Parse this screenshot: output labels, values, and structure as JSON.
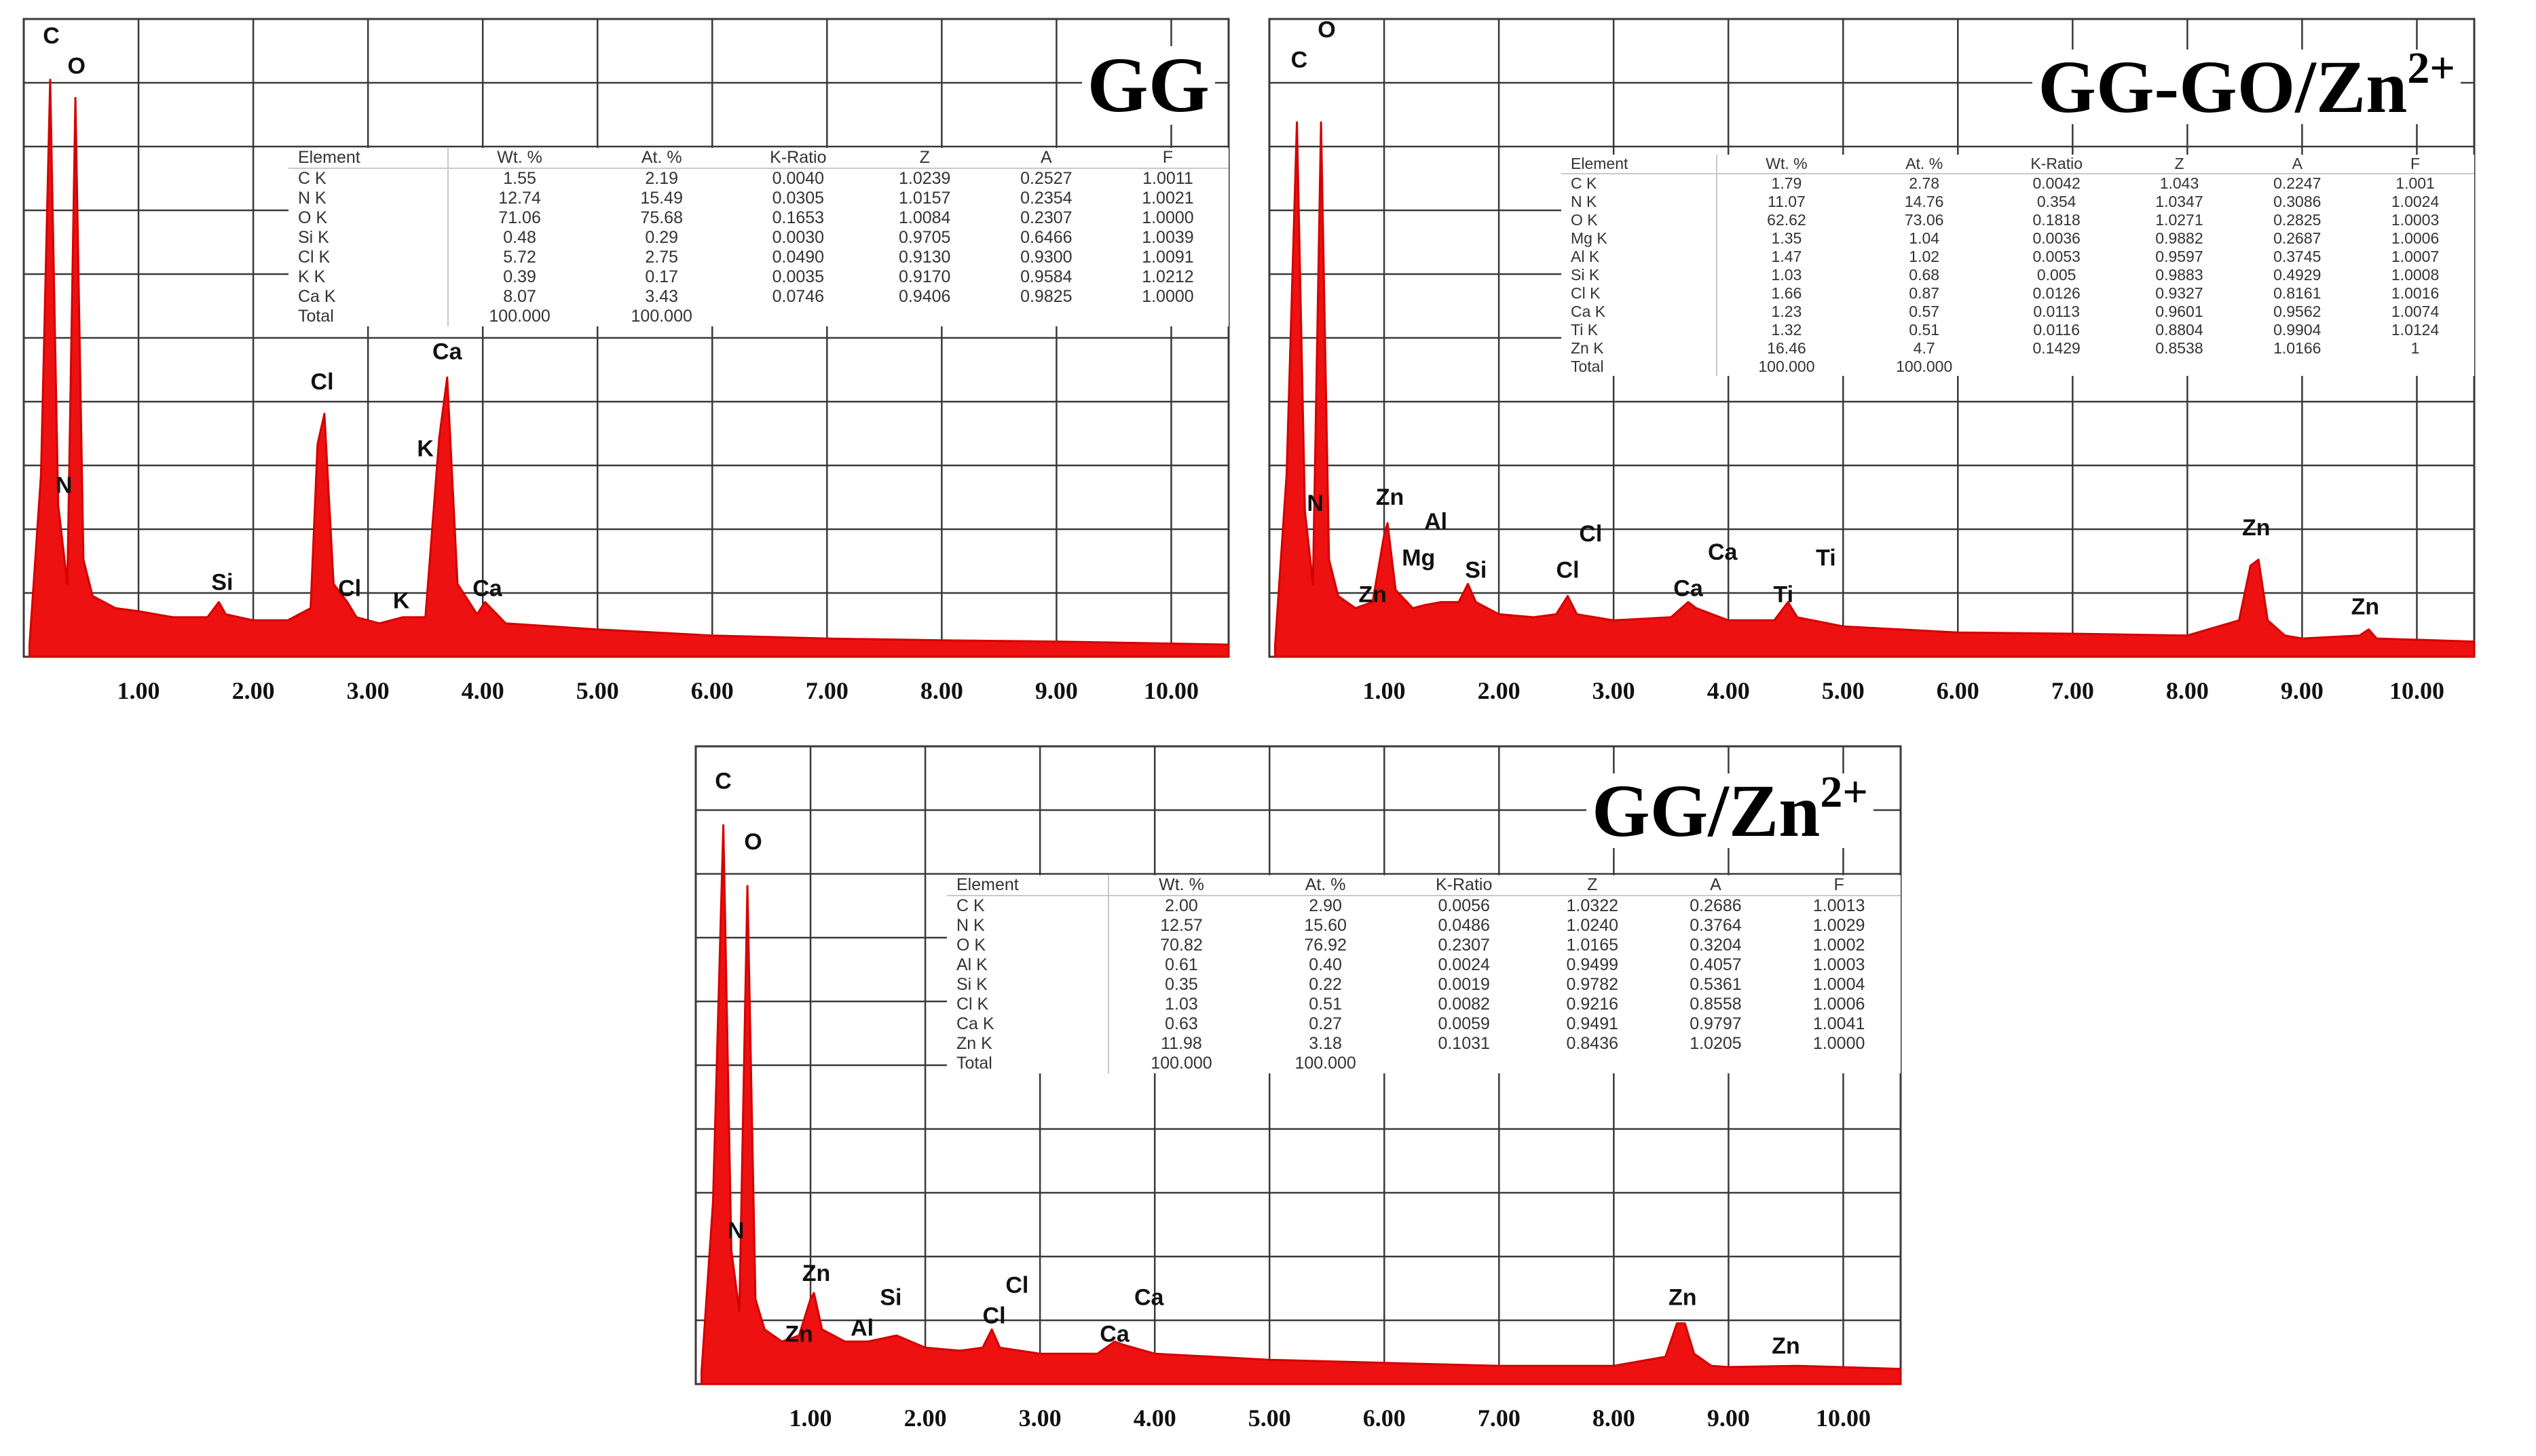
{
  "chart_data": [
    {
      "type": "line",
      "title": "GG",
      "x_ticks": [
        "1.00",
        "2.00",
        "3.00",
        "4.00",
        "5.00",
        "6.00",
        "7.00",
        "8.00",
        "9.00",
        "10.00"
      ],
      "xlim": [
        0,
        10.5
      ],
      "grid": true,
      "spectrum": [
        [
          0.05,
          2
        ],
        [
          0.15,
          30
        ],
        [
          0.23,
          95
        ],
        [
          0.3,
          25
        ],
        [
          0.38,
          12
        ],
        [
          0.45,
          92
        ],
        [
          0.52,
          16
        ],
        [
          0.6,
          10
        ],
        [
          0.8,
          8
        ],
        [
          1.0,
          7.5
        ],
        [
          1.3,
          6.5
        ],
        [
          1.6,
          6.5
        ],
        [
          1.7,
          9
        ],
        [
          1.76,
          7
        ],
        [
          2.0,
          6
        ],
        [
          2.3,
          6
        ],
        [
          2.5,
          8
        ],
        [
          2.56,
          35
        ],
        [
          2.62,
          40
        ],
        [
          2.7,
          12
        ],
        [
          2.82,
          9
        ],
        [
          2.9,
          6.5
        ],
        [
          3.1,
          5.5
        ],
        [
          3.3,
          6.5
        ],
        [
          3.5,
          6.5
        ],
        [
          3.62,
          36
        ],
        [
          3.69,
          46
        ],
        [
          3.78,
          12
        ],
        [
          3.95,
          7
        ],
        [
          4.02,
          9
        ],
        [
          4.2,
          5.5
        ],
        [
          5.0,
          4.5
        ],
        [
          6.0,
          3.5
        ],
        [
          7.0,
          3
        ],
        [
          8.0,
          2.7
        ],
        [
          9.0,
          2.5
        ],
        [
          10.5,
          2
        ]
      ],
      "peak_labels": [
        {
          "text": "C",
          "x": 0.24,
          "y": 101
        },
        {
          "text": "O",
          "x": 0.46,
          "y": 96
        },
        {
          "text": "N",
          "x": 0.35,
          "y": 27
        },
        {
          "text": "Si",
          "x": 1.73,
          "y": 11
        },
        {
          "text": "Cl",
          "x": 2.6,
          "y": 44
        },
        {
          "text": "Cl",
          "x": 2.84,
          "y": 10
        },
        {
          "text": "K",
          "x": 3.29,
          "y": 8
        },
        {
          "text": "Ca",
          "x": 3.69,
          "y": 49
        },
        {
          "text": "K",
          "x": 3.5,
          "y": 33
        },
        {
          "text": "Ca",
          "x": 4.04,
          "y": 10
        }
      ],
      "table": {
        "headers": [
          "Element",
          "Wt. %",
          "At. %",
          "K-Ratio",
          "Z",
          "A",
          "F"
        ],
        "rows": [
          [
            "C K",
            "1.55",
            "2.19",
            "0.0040",
            "1.0239",
            "0.2527",
            "1.0011"
          ],
          [
            "N K",
            "12.74",
            "15.49",
            "0.0305",
            "1.0157",
            "0.2354",
            "1.0021"
          ],
          [
            "O K",
            "71.06",
            "75.68",
            "0.1653",
            "1.0084",
            "0.2307",
            "1.0000"
          ],
          [
            "Si K",
            "0.48",
            "0.29",
            "0.0030",
            "0.9705",
            "0.6466",
            "1.0039"
          ],
          [
            "Cl K",
            "5.72",
            "2.75",
            "0.0490",
            "0.9130",
            "0.9300",
            "1.0091"
          ],
          [
            "K K",
            "0.39",
            "0.17",
            "0.0035",
            "0.9170",
            "0.9584",
            "1.0212"
          ],
          [
            "Ca K",
            "8.07",
            "3.43",
            "0.0746",
            "0.9406",
            "0.9825",
            "1.0000"
          ],
          [
            "Total",
            "100.000",
            "100.000",
            "",
            "",
            "",
            ""
          ]
        ]
      }
    },
    {
      "type": "line",
      "title": "GG-GO/Zn",
      "title_superscript": "2+",
      "x_ticks": [
        "1.00",
        "2.00",
        "3.00",
        "4.00",
        "5.00",
        "6.00",
        "7.00",
        "8.00",
        "9.00",
        "10.00"
      ],
      "xlim": [
        0,
        10.5
      ],
      "grid": true,
      "spectrum": [
        [
          0.05,
          2
        ],
        [
          0.15,
          30
        ],
        [
          0.24,
          88
        ],
        [
          0.31,
          24
        ],
        [
          0.38,
          12
        ],
        [
          0.45,
          88
        ],
        [
          0.52,
          16
        ],
        [
          0.6,
          10
        ],
        [
          0.75,
          8
        ],
        [
          0.9,
          9
        ],
        [
          1.0,
          20
        ],
        [
          1.03,
          22
        ],
        [
          1.1,
          11
        ],
        [
          1.25,
          8
        ],
        [
          1.35,
          8.5
        ],
        [
          1.5,
          9
        ],
        [
          1.65,
          9
        ],
        [
          1.73,
          12
        ],
        [
          1.8,
          9
        ],
        [
          2.0,
          7
        ],
        [
          2.3,
          6.5
        ],
        [
          2.5,
          7
        ],
        [
          2.6,
          10
        ],
        [
          2.68,
          7
        ],
        [
          3.0,
          6
        ],
        [
          3.5,
          6.5
        ],
        [
          3.65,
          9
        ],
        [
          3.72,
          8
        ],
        [
          4.0,
          6
        ],
        [
          4.4,
          6
        ],
        [
          4.52,
          9
        ],
        [
          4.6,
          6.5
        ],
        [
          5.0,
          5
        ],
        [
          6.0,
          4
        ],
        [
          7.0,
          3.8
        ],
        [
          8.0,
          3.5
        ],
        [
          8.45,
          6
        ],
        [
          8.55,
          15
        ],
        [
          8.62,
          16
        ],
        [
          8.7,
          6
        ],
        [
          8.85,
          3.5
        ],
        [
          9.0,
          3
        ],
        [
          9.5,
          3.5
        ],
        [
          9.58,
          4.5
        ],
        [
          9.65,
          3
        ],
        [
          10.5,
          2.5
        ]
      ],
      "peak_labels": [
        {
          "text": "O",
          "x": 0.5,
          "y": 102
        },
        {
          "text": "C",
          "x": 0.26,
          "y": 97
        },
        {
          "text": "N",
          "x": 0.4,
          "y": 24
        },
        {
          "text": "Zn",
          "x": 1.05,
          "y": 25
        },
        {
          "text": "Zn",
          "x": 0.9,
          "y": 9
        },
        {
          "text": "Al",
          "x": 1.45,
          "y": 21
        },
        {
          "text": "Mg",
          "x": 1.3,
          "y": 15
        },
        {
          "text": "Si",
          "x": 1.8,
          "y": 13
        },
        {
          "text": "Cl",
          "x": 2.8,
          "y": 19
        },
        {
          "text": "Cl",
          "x": 2.6,
          "y": 13
        },
        {
          "text": "Ca",
          "x": 3.95,
          "y": 16
        },
        {
          "text": "Ca",
          "x": 3.65,
          "y": 10
        },
        {
          "text": "Ti",
          "x": 4.85,
          "y": 15
        },
        {
          "text": "Ti",
          "x": 4.48,
          "y": 9
        },
        {
          "text": "Zn",
          "x": 8.6,
          "y": 20
        },
        {
          "text": "Zn",
          "x": 9.55,
          "y": 7
        }
      ],
      "table": {
        "headers": [
          "Element",
          "Wt. %",
          "At. %",
          "K-Ratio",
          "Z",
          "A",
          "F"
        ],
        "rows": [
          [
            "C K",
            "1.79",
            "2.78",
            "0.0042",
            "1.043",
            "0.2247",
            "1.001"
          ],
          [
            "N K",
            "11.07",
            "14.76",
            "0.354",
            "1.0347",
            "0.3086",
            "1.0024"
          ],
          [
            "O K",
            "62.62",
            "73.06",
            "0.1818",
            "1.0271",
            "0.2825",
            "1.0003"
          ],
          [
            "Mg K",
            "1.35",
            "1.04",
            "0.0036",
            "0.9882",
            "0.2687",
            "1.0006"
          ],
          [
            "Al K",
            "1.47",
            "1.02",
            "0.0053",
            "0.9597",
            "0.3745",
            "1.0007"
          ],
          [
            "Si K",
            "1.03",
            "0.68",
            "0.005",
            "0.9883",
            "0.4929",
            "1.0008"
          ],
          [
            "Cl K",
            "1.66",
            "0.87",
            "0.0126",
            "0.9327",
            "0.8161",
            "1.0016"
          ],
          [
            "Ca K",
            "1.23",
            "0.57",
            "0.0113",
            "0.9601",
            "0.9562",
            "1.0074"
          ],
          [
            "Ti K",
            "1.32",
            "0.51",
            "0.0116",
            "0.8804",
            "0.9904",
            "1.0124"
          ],
          [
            "Zn K",
            "16.46",
            "4.7",
            "0.1429",
            "0.8538",
            "1.0166",
            "1"
          ],
          [
            "Total",
            "100.000",
            "100.000",
            "",
            "",
            "",
            ""
          ]
        ]
      }
    },
    {
      "type": "line",
      "title": "GG/Zn",
      "title_superscript": "2+",
      "x_ticks": [
        "1.00",
        "2.00",
        "3.00",
        "4.00",
        "5.00",
        "6.00",
        "7.00",
        "8.00",
        "9.00",
        "10.00"
      ],
      "xlim": [
        0,
        10.5
      ],
      "grid": true,
      "spectrum": [
        [
          0.05,
          2
        ],
        [
          0.15,
          30
        ],
        [
          0.24,
          92
        ],
        [
          0.31,
          22
        ],
        [
          0.38,
          12
        ],
        [
          0.45,
          82
        ],
        [
          0.52,
          14
        ],
        [
          0.6,
          9
        ],
        [
          0.75,
          7
        ],
        [
          0.9,
          8
        ],
        [
          1.0,
          14
        ],
        [
          1.03,
          15
        ],
        [
          1.1,
          9
        ],
        [
          1.3,
          7
        ],
        [
          1.5,
          7
        ],
        [
          1.75,
          8
        ],
        [
          2.0,
          6
        ],
        [
          2.3,
          5.5
        ],
        [
          2.5,
          6
        ],
        [
          2.58,
          9
        ],
        [
          2.65,
          6
        ],
        [
          3.0,
          5
        ],
        [
          3.5,
          5
        ],
        [
          3.65,
          7
        ],
        [
          3.72,
          6.5
        ],
        [
          4.0,
          5
        ],
        [
          5.0,
          4
        ],
        [
          6.0,
          3.5
        ],
        [
          7.0,
          3
        ],
        [
          8.0,
          3
        ],
        [
          8.45,
          4.5
        ],
        [
          8.55,
          10
        ],
        [
          8.62,
          10
        ],
        [
          8.7,
          5
        ],
        [
          8.85,
          3
        ],
        [
          9.0,
          2.8
        ],
        [
          9.6,
          3
        ],
        [
          10.5,
          2.5
        ]
      ],
      "peak_labels": [
        {
          "text": "C",
          "x": 0.24,
          "y": 98
        },
        {
          "text": "O",
          "x": 0.5,
          "y": 88
        },
        {
          "text": "N",
          "x": 0.35,
          "y": 24
        },
        {
          "text": "Zn",
          "x": 1.05,
          "y": 17
        },
        {
          "text": "Zn",
          "x": 0.9,
          "y": 7
        },
        {
          "text": "Si",
          "x": 1.7,
          "y": 13
        },
        {
          "text": "Al",
          "x": 1.45,
          "y": 8
        },
        {
          "text": "Cl",
          "x": 2.8,
          "y": 15
        },
        {
          "text": "Cl",
          "x": 2.6,
          "y": 10
        },
        {
          "text": "Ca",
          "x": 3.95,
          "y": 13
        },
        {
          "text": "Ca",
          "x": 3.65,
          "y": 7
        },
        {
          "text": "Zn",
          "x": 8.6,
          "y": 13
        },
        {
          "text": "Zn",
          "x": 9.5,
          "y": 5
        }
      ],
      "table": {
        "headers": [
          "Element",
          "Wt. %",
          "At. %",
          "K-Ratio",
          "Z",
          "A",
          "F"
        ],
        "rows": [
          [
            "C K",
            "2.00",
            "2.90",
            "0.0056",
            "1.0322",
            "0.2686",
            "1.0013"
          ],
          [
            "N K",
            "12.57",
            "15.60",
            "0.0486",
            "1.0240",
            "0.3764",
            "1.0029"
          ],
          [
            "O K",
            "70.82",
            "76.92",
            "0.2307",
            "1.0165",
            "0.3204",
            "1.0002"
          ],
          [
            "Al K",
            "0.61",
            "0.40",
            "0.0024",
            "0.9499",
            "0.4057",
            "1.0003"
          ],
          [
            "Si K",
            "0.35",
            "0.22",
            "0.0019",
            "0.9782",
            "0.5361",
            "1.0004"
          ],
          [
            "Cl K",
            "1.03",
            "0.51",
            "0.0082",
            "0.9216",
            "0.8558",
            "1.0006"
          ],
          [
            "Ca K",
            "0.63",
            "0.27",
            "0.0059",
            "0.9491",
            "0.9797",
            "1.0041"
          ],
          [
            "Zn K",
            "11.98",
            "3.18",
            "0.1031",
            "0.8436",
            "1.0205",
            "1.0000"
          ],
          [
            "Total",
            "100.000",
            "100.000",
            "",
            "",
            "",
            ""
          ]
        ]
      }
    }
  ]
}
